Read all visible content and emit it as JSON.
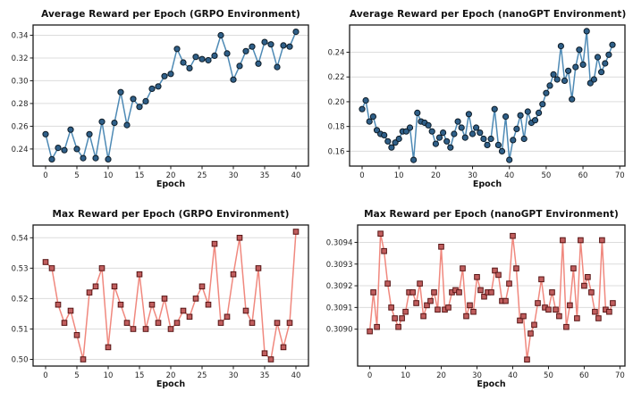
{
  "figure": {
    "background": "#ffffff",
    "grid_color": "#dcdcdc",
    "spine_color": "#1a1a1a",
    "tick_text_color": "#262626",
    "title_text_color": "#111111"
  },
  "chart_data": [
    {
      "type": "line",
      "title": "Average Reward per Epoch (GRPO Environment)",
      "xlabel": "Epoch",
      "ylabel": "",
      "legend": "none",
      "grid": "horizontal",
      "marker": "circle",
      "colors": {
        "line": "#4e8ab5",
        "marker_face": "#2f5f88",
        "marker_edge": "#0d1b26"
      },
      "x": {
        "from": 0,
        "to": 40,
        "step": 1
      },
      "values": [
        0.253,
        0.231,
        0.241,
        0.239,
        0.257,
        0.24,
        0.232,
        0.253,
        0.232,
        0.264,
        0.231,
        0.263,
        0.29,
        0.261,
        0.284,
        0.277,
        0.282,
        0.293,
        0.295,
        0.304,
        0.306,
        0.328,
        0.316,
        0.311,
        0.321,
        0.319,
        0.318,
        0.322,
        0.34,
        0.324,
        0.301,
        0.313,
        0.326,
        0.33,
        0.315,
        0.334,
        0.332,
        0.312,
        0.331,
        0.33,
        0.343
      ],
      "xlim": [
        -2,
        42
      ],
      "ylim": [
        0.225,
        0.349
      ],
      "xticks": [
        {
          "v": 0,
          "label": "0"
        },
        {
          "v": 5,
          "label": "5"
        },
        {
          "v": 10,
          "label": "10"
        },
        {
          "v": 15,
          "label": "15"
        },
        {
          "v": 20,
          "label": "20"
        },
        {
          "v": 25,
          "label": "25"
        },
        {
          "v": 30,
          "label": "30"
        },
        {
          "v": 35,
          "label": "35"
        },
        {
          "v": 40,
          "label": "40"
        }
      ],
      "yticks": [
        {
          "v": 0.24,
          "label": "0.24"
        },
        {
          "v": 0.26,
          "label": "0.26"
        },
        {
          "v": 0.28,
          "label": "0.28"
        },
        {
          "v": 0.3,
          "label": "0.30"
        },
        {
          "v": 0.32,
          "label": "0.32"
        },
        {
          "v": 0.34,
          "label": "0.34"
        }
      ]
    },
    {
      "type": "line",
      "title": "Average Reward per Epoch (nanoGPT Environment)",
      "xlabel": "Epoch",
      "ylabel": "",
      "legend": "none",
      "grid": "horizontal",
      "marker": "circle",
      "colors": {
        "line": "#4e8ab5",
        "marker_face": "#2f5f88",
        "marker_edge": "#0d1b26"
      },
      "x": {
        "from": 0,
        "to": 68,
        "step": 1
      },
      "values": [
        0.194,
        0.201,
        0.184,
        0.188,
        0.177,
        0.174,
        0.173,
        0.168,
        0.163,
        0.167,
        0.17,
        0.176,
        0.176,
        0.179,
        0.153,
        0.191,
        0.184,
        0.183,
        0.181,
        0.176,
        0.166,
        0.171,
        0.175,
        0.168,
        0.163,
        0.174,
        0.184,
        0.179,
        0.171,
        0.19,
        0.174,
        0.179,
        0.175,
        0.17,
        0.165,
        0.17,
        0.194,
        0.165,
        0.16,
        0.188,
        0.153,
        0.169,
        0.178,
        0.189,
        0.17,
        0.192,
        0.183,
        0.185,
        0.191,
        0.198,
        0.207,
        0.213,
        0.222,
        0.218,
        0.245,
        0.217,
        0.225,
        0.202,
        0.228,
        0.242,
        0.23,
        0.257,
        0.215,
        0.218,
        0.236,
        0.224,
        0.231,
        0.238,
        0.246
      ],
      "xlim": [
        -3.4,
        71.4
      ],
      "ylim": [
        0.148,
        0.262
      ],
      "xticks": [
        {
          "v": 0,
          "label": "0"
        },
        {
          "v": 10,
          "label": "10"
        },
        {
          "v": 20,
          "label": "20"
        },
        {
          "v": 30,
          "label": "30"
        },
        {
          "v": 40,
          "label": "40"
        },
        {
          "v": 50,
          "label": "50"
        },
        {
          "v": 60,
          "label": "60"
        },
        {
          "v": 70,
          "label": "70"
        }
      ],
      "yticks": [
        {
          "v": 0.16,
          "label": "0.16"
        },
        {
          "v": 0.18,
          "label": "0.18"
        },
        {
          "v": 0.2,
          "label": "0.20"
        },
        {
          "v": 0.22,
          "label": "0.22"
        },
        {
          "v": 0.24,
          "label": "0.24"
        }
      ]
    },
    {
      "type": "line",
      "title": "Max Reward per Epoch (GRPO Environment)",
      "xlabel": "Epoch",
      "ylabel": "",
      "legend": "none",
      "grid": "horizontal",
      "marker": "square",
      "colors": {
        "line": "#f0887e",
        "marker_face": "#c05e5e",
        "marker_edge": "#571414"
      },
      "x": {
        "from": 0,
        "to": 40,
        "step": 1
      },
      "values": [
        0.532,
        0.53,
        0.518,
        0.512,
        0.516,
        0.508,
        0.5,
        0.522,
        0.524,
        0.53,
        0.504,
        0.524,
        0.518,
        0.512,
        0.51,
        0.528,
        0.51,
        0.518,
        0.512,
        0.52,
        0.51,
        0.512,
        0.516,
        0.514,
        0.52,
        0.524,
        0.518,
        0.538,
        0.512,
        0.514,
        0.528,
        0.54,
        0.516,
        0.512,
        0.53,
        0.502,
        0.5,
        0.512,
        0.504,
        0.512,
        0.542
      ],
      "xlim": [
        -2,
        42
      ],
      "ylim": [
        0.4978,
        0.5442
      ],
      "xticks": [
        {
          "v": 0,
          "label": "0"
        },
        {
          "v": 5,
          "label": "5"
        },
        {
          "v": 10,
          "label": "10"
        },
        {
          "v": 15,
          "label": "15"
        },
        {
          "v": 20,
          "label": "20"
        },
        {
          "v": 25,
          "label": "25"
        },
        {
          "v": 30,
          "label": "30"
        },
        {
          "v": 35,
          "label": "35"
        },
        {
          "v": 40,
          "label": "40"
        }
      ],
      "yticks": [
        {
          "v": 0.5,
          "label": "0.50"
        },
        {
          "v": 0.51,
          "label": "0.51"
        },
        {
          "v": 0.52,
          "label": "0.52"
        },
        {
          "v": 0.53,
          "label": "0.53"
        },
        {
          "v": 0.54,
          "label": "0.54"
        }
      ]
    },
    {
      "type": "line",
      "title": "Max Reward per Epoch (nanoGPT Environment)",
      "xlabel": "Epoch",
      "ylabel": "",
      "legend": "none",
      "grid": "horizontal",
      "marker": "square",
      "colors": {
        "line": "#f0887e",
        "marker_face": "#c05e5e",
        "marker_edge": "#571414"
      },
      "x": {
        "from": 0,
        "to": 68,
        "step": 1
      },
      "values": [
        0.30899,
        0.30917,
        0.30901,
        0.30944,
        0.30936,
        0.30921,
        0.3091,
        0.30905,
        0.30901,
        0.30905,
        0.30908,
        0.30917,
        0.30917,
        0.30912,
        0.30921,
        0.30906,
        0.30911,
        0.30913,
        0.30917,
        0.30909,
        0.30938,
        0.30909,
        0.3091,
        0.30917,
        0.30918,
        0.30917,
        0.30928,
        0.30906,
        0.30911,
        0.30908,
        0.30924,
        0.30918,
        0.30915,
        0.30917,
        0.30917,
        0.30927,
        0.30925,
        0.30913,
        0.30913,
        0.30921,
        0.30943,
        0.30928,
        0.30904,
        0.30906,
        0.30886,
        0.30898,
        0.30902,
        0.30912,
        0.30923,
        0.3091,
        0.30909,
        0.30917,
        0.30909,
        0.30906,
        0.30941,
        0.30901,
        0.30911,
        0.30928,
        0.30905,
        0.30941,
        0.3092,
        0.30924,
        0.30917,
        0.30908,
        0.30905,
        0.30941,
        0.30909,
        0.30908,
        0.30912
      ],
      "xlim": [
        -3.4,
        71.4
      ],
      "ylim": [
        0.30883,
        0.30948
      ],
      "xticks": [
        {
          "v": 0,
          "label": "0"
        },
        {
          "v": 10,
          "label": "10"
        },
        {
          "v": 20,
          "label": "20"
        },
        {
          "v": 30,
          "label": "30"
        },
        {
          "v": 40,
          "label": "40"
        },
        {
          "v": 50,
          "label": "50"
        },
        {
          "v": 60,
          "label": "60"
        },
        {
          "v": 70,
          "label": "70"
        }
      ],
      "yticks": [
        {
          "v": 0.309,
          "label": "0.3090"
        },
        {
          "v": 0.3091,
          "label": "0.3091"
        },
        {
          "v": 0.3092,
          "label": "0.3092"
        },
        {
          "v": 0.3093,
          "label": "0.3093"
        },
        {
          "v": 0.3094,
          "label": "0.3094"
        }
      ]
    }
  ]
}
